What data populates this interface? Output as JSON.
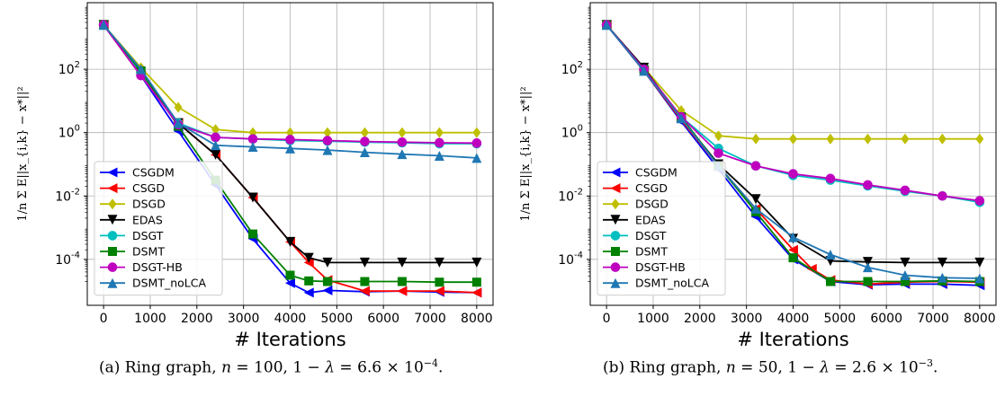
{
  "colors": {
    "CSGDM": "#0000ff",
    "CSGD": "#ff0000",
    "DSGD": "#bfbf00",
    "EDAS": "#000000",
    "DSGT": "#00bfbf",
    "DSMT": "#008000",
    "DSGT-HB": "#bf00bf",
    "DSMT_noLCA": "#1f77b4"
  },
  "markers": {
    "CSGDM": "triangle-left",
    "CSGD": "triangle-left",
    "DSGD": "diamond",
    "EDAS": "triangle-down",
    "DSGT": "circle",
    "DSMT": "square",
    "DSGT-HB": "circle",
    "DSMT_noLCA": "triangle-up"
  },
  "chart_data": [
    {
      "type": "line",
      "caption_prefix": "(a) Ring graph,",
      "caption_n": "100",
      "caption_gap": "6.6",
      "caption_exp": "−4",
      "xlabel": "# Iterations",
      "ylabel": "1/n Σ E||x_{i,k} − x*||²",
      "yscale": "log",
      "xlim": [
        -350,
        8350
      ],
      "ylim_log10": [
        -5.45,
        4.1
      ],
      "xticks": [
        0,
        1000,
        2000,
        3000,
        4000,
        5000,
        6000,
        7000,
        8000
      ],
      "yticks_log10": [
        -4,
        -2,
        0,
        2
      ],
      "yticks_label": [
        "10^-4",
        "10^-2",
        "10^0",
        "10^2"
      ],
      "grid": true,
      "legend_position": "lower-left",
      "series": [
        {
          "name": "CSGDM",
          "x": [
            0,
            800,
            1600,
            2400,
            3200,
            4000,
            4400,
            4800,
            5600,
            6400,
            7200,
            8000
          ],
          "log10y": [
            3.4,
            1.8,
            0.05,
            -1.65,
            -3.35,
            -4.75,
            -5.05,
            -4.98,
            -5.02,
            -5.0,
            -5.03,
            -5.05
          ]
        },
        {
          "name": "CSGD",
          "x": [
            0,
            800,
            1600,
            2400,
            3200,
            4000,
            4400,
            4800,
            5600,
            6400,
            7200,
            8000
          ],
          "log10y": [
            3.4,
            1.8,
            0.3,
            -0.7,
            -2.05,
            -3.45,
            -4.1,
            -4.65,
            -5.0,
            -5.0,
            -5.0,
            -5.05
          ]
        },
        {
          "name": "DSGD",
          "x": [
            0,
            800,
            1600,
            2400,
            3200,
            4000,
            4800,
            5600,
            6400,
            7200,
            8000
          ],
          "log10y": [
            3.4,
            2.05,
            0.8,
            0.1,
            0.0,
            0.0,
            0.0,
            0.0,
            0.0,
            0.0,
            0.0
          ]
        },
        {
          "name": "EDAS",
          "x": [
            0,
            800,
            1600,
            2400,
            3200,
            4000,
            4400,
            4800,
            5600,
            6400,
            7200,
            8000
          ],
          "log10y": [
            3.4,
            1.9,
            0.3,
            -0.7,
            -2.05,
            -3.45,
            -3.95,
            -4.1,
            -4.1,
            -4.1,
            -4.1,
            -4.1
          ]
        },
        {
          "name": "DSGT",
          "x": [
            0,
            800,
            1600,
            2400,
            3200,
            4000,
            4800,
            5600,
            6400,
            7200,
            8000
          ],
          "log10y": [
            3.4,
            1.9,
            0.3,
            -0.15,
            -0.2,
            -0.25,
            -0.27,
            -0.3,
            -0.32,
            -0.35,
            -0.35
          ]
        },
        {
          "name": "DSMT",
          "x": [
            0,
            800,
            1600,
            2400,
            3200,
            4000,
            4400,
            4800,
            5600,
            6400,
            7200,
            8000
          ],
          "log10y": [
            3.4,
            1.95,
            0.2,
            -1.5,
            -3.2,
            -4.5,
            -4.68,
            -4.7,
            -4.7,
            -4.7,
            -4.72,
            -4.72
          ]
        },
        {
          "name": "DSGT-HB",
          "x": [
            0,
            800,
            1600,
            2400,
            3200,
            4000,
            4800,
            5600,
            6400,
            7200,
            8000
          ],
          "log10y": [
            3.4,
            1.8,
            0.25,
            -0.15,
            -0.2,
            -0.22,
            -0.25,
            -0.28,
            -0.3,
            -0.32,
            -0.33
          ]
        },
        {
          "name": "DSMT_noLCA",
          "x": [
            0,
            800,
            1600,
            2400,
            3200,
            4000,
            4800,
            5600,
            6400,
            7200,
            8000
          ],
          "log10y": [
            3.4,
            2.0,
            0.3,
            -0.4,
            -0.45,
            -0.5,
            -0.55,
            -0.62,
            -0.68,
            -0.73,
            -0.8
          ]
        }
      ]
    },
    {
      "type": "line",
      "caption_prefix": "(b) Ring graph,",
      "caption_n": "50",
      "caption_gap": "2.6",
      "caption_exp": "−3",
      "xlabel": "# Iterations",
      "ylabel": "1/n Σ E||x_{i,k} − x*||²",
      "yscale": "log",
      "xlim": [
        -350,
        8350
      ],
      "ylim_log10": [
        -5.45,
        4.1
      ],
      "xticks": [
        0,
        1000,
        2000,
        3000,
        4000,
        5000,
        6000,
        7000,
        8000
      ],
      "yticks_log10": [
        -4,
        -2,
        0,
        2
      ],
      "yticks_label": [
        "10^-4",
        "10^-2",
        "10^0",
        "10^2"
      ],
      "grid": true,
      "legend_position": "lower-left",
      "series": [
        {
          "name": "CSGDM",
          "x": [
            0,
            800,
            1600,
            2400,
            3200,
            4000,
            4800,
            5600,
            6400,
            7200,
            8000
          ],
          "log10y": [
            3.4,
            1.95,
            0.35,
            -1.15,
            -2.65,
            -4.0,
            -4.7,
            -4.8,
            -4.78,
            -4.78,
            -4.82
          ]
        },
        {
          "name": "CSGD",
          "x": [
            0,
            800,
            1600,
            2400,
            3200,
            4000,
            4400,
            4800,
            5600,
            6400,
            7200,
            8000
          ],
          "log10y": [
            3.4,
            1.95,
            0.4,
            -1.05,
            -2.4,
            -3.7,
            -4.3,
            -4.65,
            -4.78,
            -4.72,
            -4.7,
            -4.72
          ]
        },
        {
          "name": "DSGD",
          "x": [
            0,
            800,
            1600,
            2400,
            3200,
            4000,
            4800,
            5600,
            6400,
            7200,
            8000
          ],
          "log10y": [
            3.4,
            2.05,
            0.7,
            -0.1,
            -0.2,
            -0.2,
            -0.2,
            -0.2,
            -0.2,
            -0.2,
            -0.2
          ]
        },
        {
          "name": "EDAS",
          "x": [
            0,
            800,
            1600,
            2400,
            3200,
            4000,
            4800,
            5600,
            6400,
            7200,
            8000
          ],
          "log10y": [
            3.4,
            2.05,
            0.45,
            -1.0,
            -2.1,
            -3.35,
            -4.05,
            -4.08,
            -4.1,
            -4.1,
            -4.1
          ]
        },
        {
          "name": "DSGT",
          "x": [
            0,
            800,
            1600,
            2400,
            3200,
            4000,
            4800,
            5600,
            6400,
            7200,
            8000
          ],
          "log10y": [
            3.4,
            2.0,
            0.5,
            -0.5,
            -1.05,
            -1.35,
            -1.5,
            -1.68,
            -1.85,
            -2.0,
            -2.2
          ]
        },
        {
          "name": "DSMT",
          "x": [
            0,
            800,
            1600,
            2400,
            3200,
            4000,
            4800,
            5600,
            6400,
            7200,
            8000
          ],
          "log10y": [
            3.4,
            2.0,
            0.5,
            -1.05,
            -2.5,
            -3.95,
            -4.7,
            -4.7,
            -4.7,
            -4.68,
            -4.7
          ]
        },
        {
          "name": "DSGT-HB",
          "x": [
            0,
            800,
            1600,
            2400,
            3200,
            4000,
            4800,
            5600,
            6400,
            7200,
            8000
          ],
          "log10y": [
            3.4,
            2.0,
            0.5,
            -0.65,
            -1.05,
            -1.3,
            -1.45,
            -1.65,
            -1.82,
            -2.0,
            -2.15
          ]
        },
        {
          "name": "DSMT_noLCA",
          "x": [
            0,
            800,
            1600,
            2400,
            3200,
            4000,
            4800,
            5600,
            6400,
            7200,
            8000
          ],
          "log10y": [
            3.4,
            1.95,
            0.45,
            -1.05,
            -2.4,
            -3.3,
            -3.85,
            -4.25,
            -4.5,
            -4.58,
            -4.6
          ]
        }
      ]
    }
  ]
}
